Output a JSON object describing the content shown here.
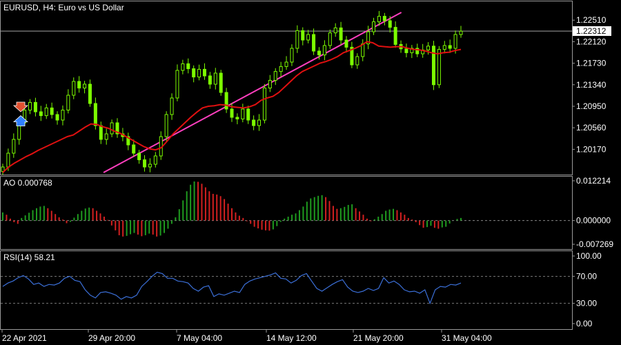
{
  "colors": {
    "background": "#000000",
    "frame": "#9a9a9a",
    "text": "#ffffff",
    "candle": "#7CFC00",
    "ma": "#e01010",
    "trendline": "#ff3fbf",
    "ao_up": "#1f9b1f",
    "ao_down": "#d42020",
    "rsi": "#3b6fd8",
    "price_tag_bg": "#ffffff",
    "price_tag_text": "#000000",
    "level_line": "#bdbdbd"
  },
  "chart_data": [
    {
      "panel": "price",
      "type": "candlestick",
      "symbol_label": "EURUSD, H4:  Euro vs US Dollar",
      "ylim": [
        1.1975,
        1.228
      ],
      "yticks": [
        "1.22510",
        "1.22120",
        "1.21730",
        "1.21340",
        "1.20950",
        "1.20560",
        "1.20170"
      ],
      "current_price": "1.22312",
      "closes": [
        1.1985,
        1.201,
        1.2035,
        1.2065,
        1.2088,
        1.2102,
        1.2085,
        1.2078,
        1.2092,
        1.208,
        1.207,
        1.2088,
        1.2115,
        1.214,
        1.2128,
        1.2135,
        1.21,
        1.206,
        1.2035,
        1.2045,
        1.2065,
        1.2045,
        1.204,
        1.2025,
        1.201,
        1.1998,
        1.1985,
        1.199,
        1.2005,
        1.204,
        1.208,
        1.211,
        1.216,
        1.2172,
        1.2163,
        1.2148,
        1.2162,
        1.215,
        1.2135,
        1.2155,
        1.212,
        1.209,
        1.2075,
        1.2072,
        1.209,
        1.207,
        1.206,
        1.207,
        1.2128,
        1.2142,
        1.2158,
        1.2167,
        1.2175,
        1.22,
        1.2232,
        1.2215,
        1.2225,
        1.2195,
        1.2188,
        1.2205,
        1.2228,
        1.2237,
        1.2215,
        1.2202,
        1.217,
        1.2185,
        1.2208,
        1.223,
        1.2248,
        1.2258,
        1.225,
        1.2238,
        1.2207,
        1.2199,
        1.2192,
        1.22,
        1.219,
        1.2197,
        1.2204,
        1.2134,
        1.2198,
        1.2205,
        1.22,
        1.2225,
        1.2231
      ],
      "ma_values": [
        1.1975,
        1.1985,
        1.1992,
        1.1998,
        1.2004,
        1.2009,
        1.2015,
        1.202,
        1.2025,
        1.203,
        1.2035,
        1.204,
        1.2043,
        1.205,
        1.2057,
        1.2063,
        1.2062,
        1.2058,
        1.2055,
        1.205,
        1.2046,
        1.204,
        1.2034,
        1.2028,
        1.2022,
        1.2018,
        1.2016,
        1.202,
        1.2032,
        1.2045,
        1.2055,
        1.2065,
        1.2075,
        1.2084,
        1.2092,
        1.2095,
        1.2096,
        1.2098,
        1.2097,
        1.2094,
        1.2093,
        1.2092,
        1.2094,
        1.2098,
        1.2106,
        1.211,
        1.2113,
        1.212,
        1.213,
        1.214,
        1.215,
        1.2158,
        1.2163,
        1.2168,
        1.2173,
        1.2176,
        1.218,
        1.2185,
        1.2192,
        1.2196,
        1.22,
        1.2205,
        1.2212,
        1.221,
        1.2204,
        1.2203,
        1.2202,
        1.2203,
        1.2203,
        1.22,
        1.2198,
        1.2197,
        1.2195,
        1.2192,
        1.219,
        1.2192,
        1.2193,
        1.2196,
        1.2198
      ],
      "trendline": [
        [
          0.22,
          1.1975
        ],
        [
          0.87,
          1.2265
        ]
      ]
    },
    {
      "panel": "oscillator",
      "type": "bar",
      "label": "AO 0.000768",
      "ylim": [
        -0.007269,
        0.012214
      ],
      "yticks": [
        "0.012214",
        "0.000000",
        "-0.007269"
      ],
      "values": [
        0.0025,
        0.0018,
        0.0006,
        -0.0005,
        -0.001,
        0.0008,
        0.0016,
        0.0024,
        0.0032,
        0.0038,
        0.0043,
        0.0045,
        0.0038,
        0.003,
        0.002,
        0.001,
        0.0003,
        -0.0008,
        -0.0004,
        0.0009,
        0.002,
        0.003,
        0.0037,
        0.004,
        0.0038,
        0.003,
        0.0022,
        0.0012,
        0.0002,
        -0.0015,
        -0.003,
        -0.0045,
        -0.0049,
        -0.0047,
        -0.0042,
        -0.0038,
        -0.0043,
        -0.0048,
        -0.0045,
        -0.004,
        -0.0043,
        -0.0049,
        -0.0046,
        -0.0038,
        -0.0025,
        -0.001,
        0.001,
        0.0035,
        0.0062,
        0.009,
        0.011,
        0.012,
        0.0119,
        0.0113,
        0.0102,
        0.009,
        0.0082,
        0.008,
        0.0075,
        0.0066,
        0.0052,
        0.0038,
        0.0025,
        0.0015,
        0.0008,
        -0.0002,
        -0.001,
        -0.0019,
        -0.0024,
        -0.0028,
        -0.003,
        -0.0031,
        -0.0027,
        -0.0017,
        -0.0004,
        0.0006,
        0.0012,
        0.0018,
        0.0022,
        0.0032,
        0.0043,
        0.0058,
        0.0068,
        0.0072,
        0.0076,
        0.0078,
        0.0072,
        0.006,
        0.0045,
        0.0036,
        0.0038,
        0.0042,
        0.0048,
        0.005,
        0.0038,
        0.0028,
        0.0018,
        0.0006,
        -0.0002,
        0.0004,
        0.0012,
        0.002,
        0.003,
        0.0034,
        0.0036,
        0.0032,
        0.0025,
        0.0018,
        0.0008,
        0.0003,
        -0.0005,
        -0.0014,
        -0.0022,
        -0.002,
        -0.0016,
        -0.0022,
        -0.0025,
        -0.0021,
        -0.0019,
        -0.0009,
        0.0,
        0.0005,
        0.0008
      ]
    },
    {
      "panel": "rsi",
      "type": "line",
      "label": "RSI(14) 58.21",
      "ylim": [
        0,
        100
      ],
      "yticks": [
        "100.00",
        "70.00",
        "30.00",
        "0.00"
      ],
      "levels": [
        70,
        30
      ],
      "values": [
        55,
        60,
        63,
        68,
        71,
        66,
        58,
        60,
        55,
        58,
        57,
        60,
        67,
        70,
        64,
        62,
        50,
        42,
        38,
        46,
        47,
        45,
        42,
        36,
        40,
        38,
        42,
        55,
        62,
        70,
        76,
        74,
        67,
        67,
        63,
        62,
        60,
        52,
        48,
        54,
        56,
        40,
        44,
        42,
        45,
        48,
        46,
        58,
        63,
        66,
        68,
        70,
        72,
        75,
        67,
        66,
        60,
        64,
        71,
        74,
        63,
        52,
        48,
        53,
        58,
        62,
        65,
        54,
        48,
        46,
        48,
        52,
        49,
        52,
        68,
        60,
        63,
        58,
        50,
        47,
        48,
        45,
        50,
        30,
        50,
        55,
        54,
        58,
        57,
        60
      ]
    }
  ],
  "time_axis": {
    "labels": [
      "22 Apr 2021",
      "29 Apr 20:00",
      "7 May 04:00",
      "14 May 12:00",
      "21 May 20:00",
      "31 May 04:00"
    ]
  },
  "markers": [
    {
      "name": "sell-arrow-marker",
      "direction": "down",
      "color": "#e05030"
    },
    {
      "name": "buy-arrow-marker",
      "direction": "up",
      "color": "#3080ff"
    }
  ]
}
